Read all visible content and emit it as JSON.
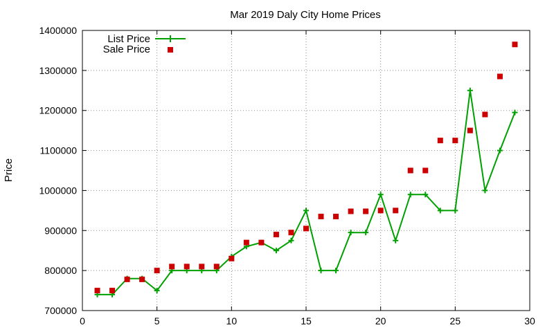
{
  "chart_data": {
    "type": "line",
    "title": "Mar 2019 Daly City Home Prices",
    "xlabel": "",
    "ylabel": "Price",
    "xlim": [
      0,
      30
    ],
    "ylim": [
      700000,
      1400000
    ],
    "xticks": [
      0,
      5,
      10,
      15,
      20,
      25,
      30
    ],
    "yticks": [
      700000,
      800000,
      900000,
      1000000,
      1100000,
      1200000,
      1300000,
      1400000
    ],
    "grid": true,
    "legend_position": "top-left",
    "x": [
      1,
      2,
      3,
      4,
      5,
      6,
      7,
      8,
      9,
      10,
      11,
      12,
      13,
      14,
      15,
      16,
      17,
      18,
      19,
      20,
      21,
      22,
      23,
      24,
      25,
      26,
      27,
      28,
      29
    ],
    "series": [
      {
        "name": "List Price",
        "style": "line-with-plus-markers",
        "color": "#00a000",
        "values": [
          740000,
          740000,
          780000,
          780000,
          750000,
          800000,
          800000,
          800000,
          800000,
          835000,
          860000,
          870000,
          850000,
          875000,
          950000,
          800000,
          800000,
          895000,
          895000,
          990000,
          875000,
          990000,
          990000,
          950000,
          950000,
          1250000,
          1000000,
          1100000,
          1195000
        ]
      },
      {
        "name": "Sale Price",
        "style": "square-markers",
        "color": "#cc0000",
        "values": [
          750000,
          750000,
          778000,
          778000,
          800000,
          810000,
          810000,
          810000,
          810000,
          830000,
          870000,
          870000,
          890000,
          895000,
          905000,
          935000,
          935000,
          948000,
          948000,
          950000,
          950000,
          1050000,
          1050000,
          1125000,
          1125000,
          1150000,
          1190000,
          1285000,
          1365000
        ]
      }
    ]
  }
}
